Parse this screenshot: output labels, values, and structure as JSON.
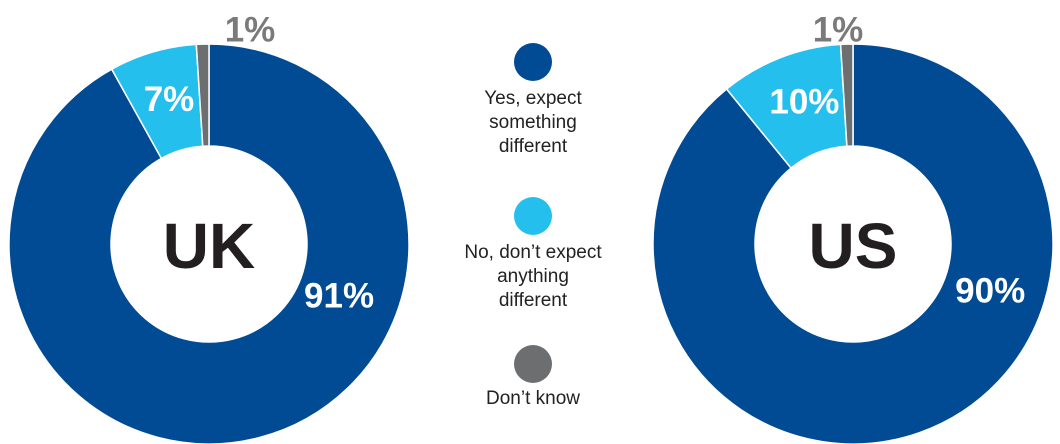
{
  "chart_data": [
    {
      "type": "pie",
      "center_label": "UK",
      "slices": [
        {
          "category": "Yes, expect something different",
          "value": 91,
          "label": "91%"
        },
        {
          "category": "No, don’t expect anything different",
          "value": 7,
          "label": "7%"
        },
        {
          "category": "Don’t know",
          "value": 1,
          "label": "1%"
        }
      ]
    },
    {
      "type": "pie",
      "center_label": "US",
      "slices": [
        {
          "category": "Yes, expect something different",
          "value": 90,
          "label": "90%"
        },
        {
          "category": "No, don’t expect anything different",
          "value": 10,
          "label": "10%"
        },
        {
          "category": "Don’t know",
          "value": 1,
          "label": "1%"
        }
      ]
    }
  ],
  "legend": [
    {
      "lines": [
        "Yes, expect",
        "something",
        "different"
      ],
      "color": "#004b93"
    },
    {
      "lines": [
        "No, don’t expect",
        "anything",
        "different"
      ],
      "color": "#25bfee"
    },
    {
      "lines": [
        "Don’t know"
      ],
      "color": "#6d6e70"
    }
  ],
  "colors": {
    "yes": "#004b93",
    "no": "#25bfee",
    "dont_know": "#6d6e70",
    "center_text": "#231f20",
    "outside_label": "#7a7a7a"
  }
}
